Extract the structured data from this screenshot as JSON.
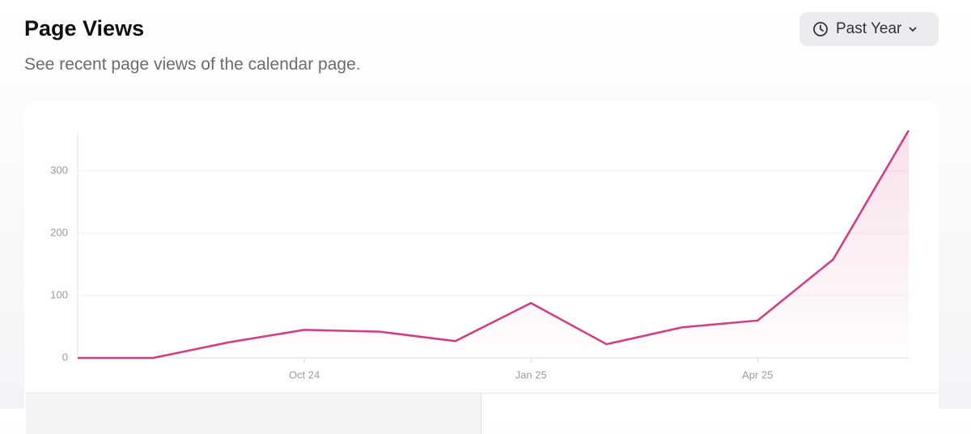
{
  "header": {
    "title": "Page Views",
    "subtitle": "See recent page views of the calendar page.",
    "range_button": "Past Year"
  },
  "chart_data": {
    "type": "line",
    "categories": [
      null,
      null,
      null,
      "Oct 24",
      null,
      null,
      "Jan 25",
      null,
      null,
      "Apr 25",
      null,
      null
    ],
    "series": [
      {
        "name": "Page views",
        "color": "#d63a7f",
        "values": [
          0,
          0,
          25,
          45,
          42,
          27,
          88,
          22,
          49,
          60,
          158,
          365
        ]
      }
    ],
    "ylim": [
      0,
      365
    ],
    "yticks": [
      0,
      100,
      200,
      300
    ],
    "grid": true
  }
}
